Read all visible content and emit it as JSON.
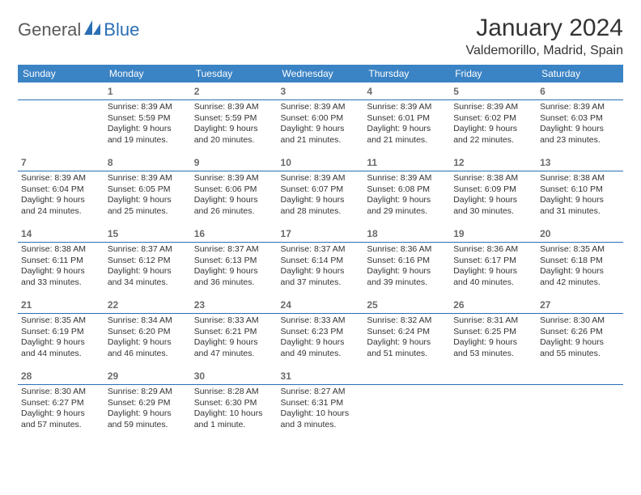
{
  "brand": {
    "general": "General",
    "blue": "Blue"
  },
  "title": "January 2024",
  "location": "Valdemorillo, Madrid, Spain",
  "colors": {
    "header_bg": "#3a83c4",
    "header_text": "#ffffff",
    "rule": "#2a6fb5",
    "daynum": "#6a6a6a",
    "body_text": "#333333",
    "logo_gray": "#5a5a5a",
    "logo_blue": "#2a6fb5",
    "page_bg": "#ffffff"
  },
  "typography": {
    "title_fontsize": 30,
    "location_fontsize": 16,
    "header_fontsize": 12,
    "daynum_fontsize": 12,
    "cell_fontsize": 10.5,
    "logo_fontsize": 22
  },
  "weekdays": [
    "Sunday",
    "Monday",
    "Tuesday",
    "Wednesday",
    "Thursday",
    "Friday",
    "Saturday"
  ],
  "weeks": [
    [
      null,
      {
        "n": "1",
        "sr": "Sunrise: 8:39 AM",
        "ss": "Sunset: 5:59 PM",
        "d1": "Daylight: 9 hours",
        "d2": "and 19 minutes."
      },
      {
        "n": "2",
        "sr": "Sunrise: 8:39 AM",
        "ss": "Sunset: 5:59 PM",
        "d1": "Daylight: 9 hours",
        "d2": "and 20 minutes."
      },
      {
        "n": "3",
        "sr": "Sunrise: 8:39 AM",
        "ss": "Sunset: 6:00 PM",
        "d1": "Daylight: 9 hours",
        "d2": "and 21 minutes."
      },
      {
        "n": "4",
        "sr": "Sunrise: 8:39 AM",
        "ss": "Sunset: 6:01 PM",
        "d1": "Daylight: 9 hours",
        "d2": "and 21 minutes."
      },
      {
        "n": "5",
        "sr": "Sunrise: 8:39 AM",
        "ss": "Sunset: 6:02 PM",
        "d1": "Daylight: 9 hours",
        "d2": "and 22 minutes."
      },
      {
        "n": "6",
        "sr": "Sunrise: 8:39 AM",
        "ss": "Sunset: 6:03 PM",
        "d1": "Daylight: 9 hours",
        "d2": "and 23 minutes."
      }
    ],
    [
      {
        "n": "7",
        "sr": "Sunrise: 8:39 AM",
        "ss": "Sunset: 6:04 PM",
        "d1": "Daylight: 9 hours",
        "d2": "and 24 minutes."
      },
      {
        "n": "8",
        "sr": "Sunrise: 8:39 AM",
        "ss": "Sunset: 6:05 PM",
        "d1": "Daylight: 9 hours",
        "d2": "and 25 minutes."
      },
      {
        "n": "9",
        "sr": "Sunrise: 8:39 AM",
        "ss": "Sunset: 6:06 PM",
        "d1": "Daylight: 9 hours",
        "d2": "and 26 minutes."
      },
      {
        "n": "10",
        "sr": "Sunrise: 8:39 AM",
        "ss": "Sunset: 6:07 PM",
        "d1": "Daylight: 9 hours",
        "d2": "and 28 minutes."
      },
      {
        "n": "11",
        "sr": "Sunrise: 8:39 AM",
        "ss": "Sunset: 6:08 PM",
        "d1": "Daylight: 9 hours",
        "d2": "and 29 minutes."
      },
      {
        "n": "12",
        "sr": "Sunrise: 8:38 AM",
        "ss": "Sunset: 6:09 PM",
        "d1": "Daylight: 9 hours",
        "d2": "and 30 minutes."
      },
      {
        "n": "13",
        "sr": "Sunrise: 8:38 AM",
        "ss": "Sunset: 6:10 PM",
        "d1": "Daylight: 9 hours",
        "d2": "and 31 minutes."
      }
    ],
    [
      {
        "n": "14",
        "sr": "Sunrise: 8:38 AM",
        "ss": "Sunset: 6:11 PM",
        "d1": "Daylight: 9 hours",
        "d2": "and 33 minutes."
      },
      {
        "n": "15",
        "sr": "Sunrise: 8:37 AM",
        "ss": "Sunset: 6:12 PM",
        "d1": "Daylight: 9 hours",
        "d2": "and 34 minutes."
      },
      {
        "n": "16",
        "sr": "Sunrise: 8:37 AM",
        "ss": "Sunset: 6:13 PM",
        "d1": "Daylight: 9 hours",
        "d2": "and 36 minutes."
      },
      {
        "n": "17",
        "sr": "Sunrise: 8:37 AM",
        "ss": "Sunset: 6:14 PM",
        "d1": "Daylight: 9 hours",
        "d2": "and 37 minutes."
      },
      {
        "n": "18",
        "sr": "Sunrise: 8:36 AM",
        "ss": "Sunset: 6:16 PM",
        "d1": "Daylight: 9 hours",
        "d2": "and 39 minutes."
      },
      {
        "n": "19",
        "sr": "Sunrise: 8:36 AM",
        "ss": "Sunset: 6:17 PM",
        "d1": "Daylight: 9 hours",
        "d2": "and 40 minutes."
      },
      {
        "n": "20",
        "sr": "Sunrise: 8:35 AM",
        "ss": "Sunset: 6:18 PM",
        "d1": "Daylight: 9 hours",
        "d2": "and 42 minutes."
      }
    ],
    [
      {
        "n": "21",
        "sr": "Sunrise: 8:35 AM",
        "ss": "Sunset: 6:19 PM",
        "d1": "Daylight: 9 hours",
        "d2": "and 44 minutes."
      },
      {
        "n": "22",
        "sr": "Sunrise: 8:34 AM",
        "ss": "Sunset: 6:20 PM",
        "d1": "Daylight: 9 hours",
        "d2": "and 46 minutes."
      },
      {
        "n": "23",
        "sr": "Sunrise: 8:33 AM",
        "ss": "Sunset: 6:21 PM",
        "d1": "Daylight: 9 hours",
        "d2": "and 47 minutes."
      },
      {
        "n": "24",
        "sr": "Sunrise: 8:33 AM",
        "ss": "Sunset: 6:23 PM",
        "d1": "Daylight: 9 hours",
        "d2": "and 49 minutes."
      },
      {
        "n": "25",
        "sr": "Sunrise: 8:32 AM",
        "ss": "Sunset: 6:24 PM",
        "d1": "Daylight: 9 hours",
        "d2": "and 51 minutes."
      },
      {
        "n": "26",
        "sr": "Sunrise: 8:31 AM",
        "ss": "Sunset: 6:25 PM",
        "d1": "Daylight: 9 hours",
        "d2": "and 53 minutes."
      },
      {
        "n": "27",
        "sr": "Sunrise: 8:30 AM",
        "ss": "Sunset: 6:26 PM",
        "d1": "Daylight: 9 hours",
        "d2": "and 55 minutes."
      }
    ],
    [
      {
        "n": "28",
        "sr": "Sunrise: 8:30 AM",
        "ss": "Sunset: 6:27 PM",
        "d1": "Daylight: 9 hours",
        "d2": "and 57 minutes."
      },
      {
        "n": "29",
        "sr": "Sunrise: 8:29 AM",
        "ss": "Sunset: 6:29 PM",
        "d1": "Daylight: 9 hours",
        "d2": "and 59 minutes."
      },
      {
        "n": "30",
        "sr": "Sunrise: 8:28 AM",
        "ss": "Sunset: 6:30 PM",
        "d1": "Daylight: 10 hours",
        "d2": "and 1 minute."
      },
      {
        "n": "31",
        "sr": "Sunrise: 8:27 AM",
        "ss": "Sunset: 6:31 PM",
        "d1": "Daylight: 10 hours",
        "d2": "and 3 minutes."
      },
      null,
      null,
      null
    ]
  ]
}
